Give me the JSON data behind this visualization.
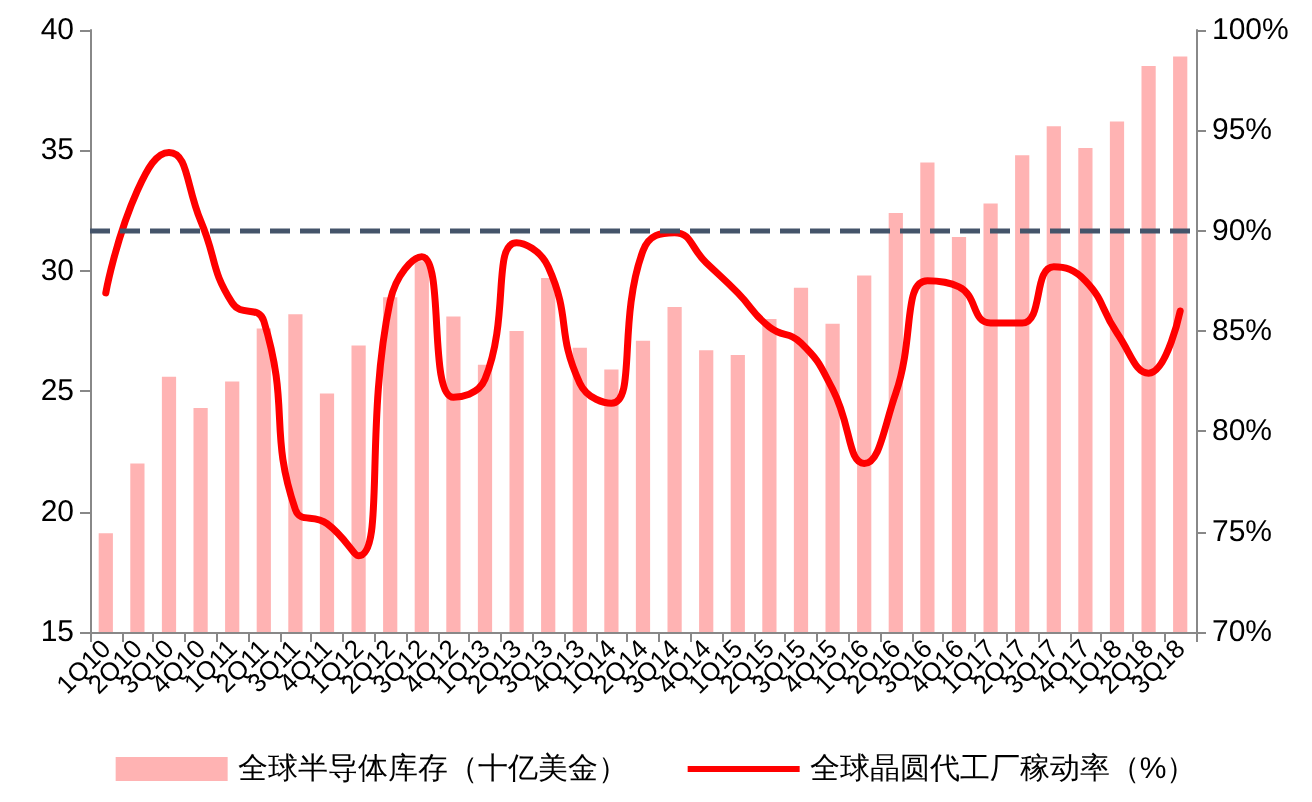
{
  "chart_data": {
    "type": "bar",
    "categories": [
      "1Q10",
      "2Q10",
      "3Q10",
      "4Q10",
      "1Q11",
      "2Q11",
      "3Q11",
      "4Q11",
      "1Q12",
      "2Q12",
      "3Q12",
      "4Q12",
      "1Q13",
      "2Q13",
      "3Q13",
      "4Q13",
      "1Q14",
      "2Q14",
      "3Q14",
      "4Q14",
      "1Q15",
      "2Q15",
      "3Q15",
      "4Q15",
      "1Q16",
      "2Q16",
      "3Q16",
      "4Q16",
      "1Q17",
      "2Q17",
      "3Q17",
      "4Q17",
      "1Q18",
      "2Q18",
      "3Q18"
    ],
    "series": [
      {
        "name": "全球半导体库存（十亿美金）",
        "color": "#ffb3b3",
        "values": [
          19.1,
          22.0,
          25.6,
          24.3,
          25.4,
          27.6,
          28.2,
          24.9,
          26.9,
          28.9,
          30.4,
          28.1,
          26.1,
          27.5,
          29.7,
          26.8,
          25.9,
          27.1,
          28.5,
          26.7,
          26.5,
          28.0,
          29.3,
          27.8,
          29.8,
          32.4,
          34.5,
          31.4,
          32.8,
          34.8,
          36.0,
          35.1,
          36.2,
          38.5,
          38.9
        ]
      },
      {
        "name": "全球晶圆代工厂稼动率（%）",
        "type": "line",
        "axis": "y2",
        "color": "#ff0000",
        "values": [
          86.9,
          92.0,
          93.9,
          90.5,
          86.4,
          85.5,
          76.1,
          75.4,
          73.8,
          86.5,
          88.7,
          81.7,
          82.6,
          89.4,
          88.2,
          82.4,
          81.4,
          89.0,
          89.9,
          88.4,
          86.9,
          85.2,
          84.4,
          82.1,
          78.4,
          81.9,
          87.5,
          87.2,
          85.4,
          85.4,
          88.2,
          87.5,
          84.9,
          82.9,
          86.0
        ]
      }
    ],
    "ylim": [
      15,
      40
    ],
    "yticks": [
      15,
      20,
      25,
      30,
      35,
      40
    ],
    "y2lim": [
      70,
      100
    ],
    "y2ticks": [
      {
        "value": 70,
        "label": "70%"
      },
      {
        "value": 75,
        "label": "75%"
      },
      {
        "value": 80,
        "label": "80%"
      },
      {
        "value": 85,
        "label": "85%"
      },
      {
        "value": 90,
        "label": "90%"
      },
      {
        "value": 95,
        "label": "95%"
      },
      {
        "value": 100,
        "label": "100%"
      }
    ],
    "ref_lines": [
      {
        "axis": "y2",
        "value": 90,
        "label": null,
        "color": "#44546a",
        "line_style": "dashed"
      }
    ],
    "grid": false,
    "legend": "bottom",
    "marker": "none",
    "line_style": "solid"
  }
}
